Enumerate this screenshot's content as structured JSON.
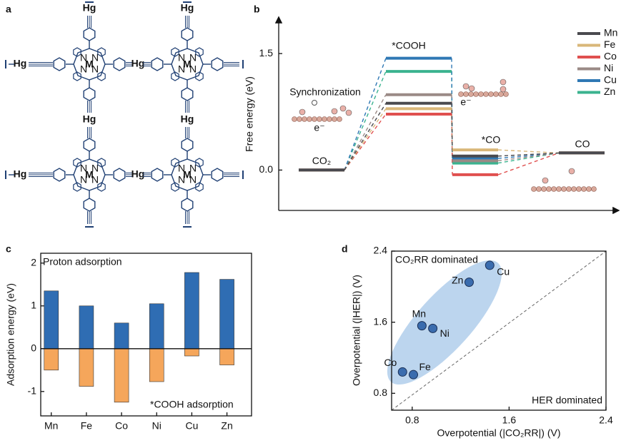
{
  "panel_a": {
    "panel": "a",
    "linker": "Hg",
    "metal": "M",
    "nitrogen": "N"
  },
  "chart_data": [
    {
      "type": "energy_diagram",
      "panel": "b",
      "ylabel": "Free energy (eV)",
      "categories": [
        "CO₂",
        "*COOH",
        "*CO",
        "CO"
      ],
      "series": [
        {
          "name": "Mn",
          "color": "#4a4a4f",
          "values": [
            0,
            0.86,
            0.18,
            0.22
          ]
        },
        {
          "name": "Fe",
          "color": "#d9b779",
          "values": [
            0,
            0.79,
            0.26,
            0.22
          ]
        },
        {
          "name": "Co",
          "color": "#e0504f",
          "values": [
            0,
            0.72,
            -0.06,
            0.22
          ]
        },
        {
          "name": "Ni",
          "color": "#9a8a86",
          "values": [
            0,
            0.97,
            0.12,
            0.22
          ]
        },
        {
          "name": "Cu",
          "color": "#2f78b4",
          "values": [
            0,
            1.44,
            0.15,
            0.22
          ]
        },
        {
          "name": "Zn",
          "color": "#3bb38f",
          "values": [
            0,
            1.27,
            0.09,
            0.22
          ]
        }
      ],
      "ylim": [
        -0.52,
        1.96
      ],
      "yticks": [
        {
          "value": 0,
          "label": "0.0"
        },
        {
          "value": 1.5,
          "label": "1.5"
        }
      ],
      "annotations": [
        "Synchronization",
        "e⁻",
        "e⁻"
      ]
    },
    {
      "type": "bar",
      "panel": "c",
      "ylabel": "Adsorption energy (eV)",
      "categories": [
        "Mn",
        "Fe",
        "Co",
        "Ni",
        "Cu",
        "Zn"
      ],
      "series": [
        {
          "name": "Proton adsorption",
          "color": "#2f6db3",
          "values": [
            1.35,
            1.0,
            0.6,
            1.05,
            1.78,
            1.62
          ]
        },
        {
          "name": "*COOH adsorption",
          "color": "#f5a65b",
          "values": [
            -0.5,
            -0.88,
            -1.25,
            -0.77,
            -0.17,
            -0.38
          ]
        }
      ],
      "ylim": [
        -1.57,
        2.23
      ],
      "yticks": [
        2,
        1,
        0,
        -1
      ]
    },
    {
      "type": "scatter",
      "panel": "d",
      "xlabel": "Overpotential (|CO₂RR|) (V)",
      "ylabel": "Overpotential (|HER|) (V)",
      "labels": [
        "Cu",
        "Zn",
        "Mn",
        "Ni",
        "Co",
        "Fe"
      ],
      "x": [
        1.44,
        1.27,
        0.88,
        0.97,
        0.72,
        0.81
      ],
      "y": [
        2.24,
        2.05,
        1.56,
        1.53,
        1.04,
        1.01
      ],
      "color": "#3a6cae",
      "xlim": [
        0.63,
        2.4
      ],
      "ylim": [
        0.61,
        2.4
      ],
      "xticks": [
        0.8,
        1.6,
        2.4
      ],
      "yticks": [
        0.8,
        1.6,
        2.4
      ],
      "annotations": [
        "CO₂RR dominated",
        "HER dominated"
      ]
    }
  ]
}
